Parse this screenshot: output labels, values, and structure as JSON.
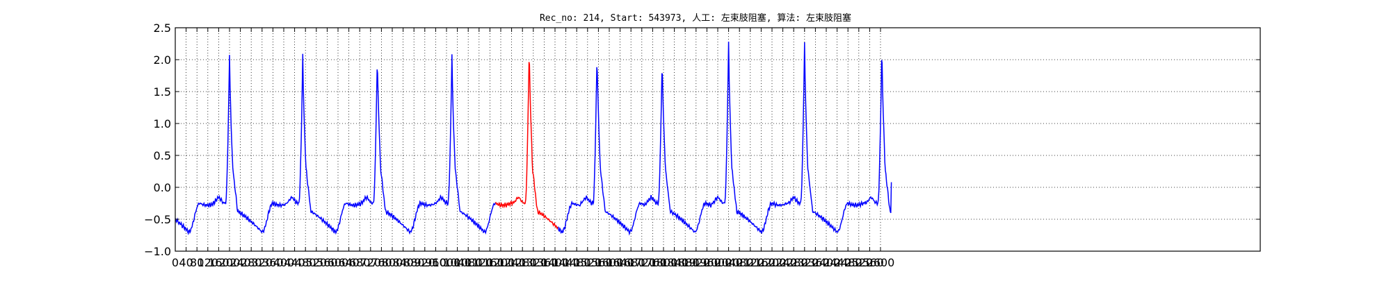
{
  "chart_data": {
    "type": "line",
    "title": "Rec_no: 214, Start: 543973, 人工: 左束肢阻塞, 算法: 左束肢阻塞",
    "xlabel": "",
    "ylabel": "",
    "xlim": [
      0,
      4000
    ],
    "ylim": [
      -1.0,
      2.5
    ],
    "grid": true,
    "y_ticks": [
      -1.0,
      -0.5,
      0.0,
      0.5,
      1.0,
      1.5,
      2.0,
      2.5
    ],
    "y_tick_labels": [
      "−1.0",
      "−0.5",
      "0.0",
      "0.5",
      "1.0",
      "1.5",
      "2.0",
      "2.5"
    ],
    "x_ticks": [
      0,
      40,
      80,
      120,
      160,
      200,
      240,
      280,
      320,
      360,
      400,
      440,
      480,
      520,
      560,
      600,
      640,
      680,
      720,
      760,
      800,
      840,
      880,
      920,
      960,
      1000,
      1040,
      1080,
      1120,
      1160,
      1200,
      1240,
      1280,
      1320,
      1360,
      1400,
      1440,
      1480,
      1520,
      1560,
      1600,
      1640,
      1680,
      1720,
      1760,
      1800,
      1840,
      1880,
      1920,
      1960,
      2000,
      2040,
      2080,
      2120,
      2160,
      2200,
      2240,
      2280,
      2320,
      2360,
      2400,
      2440,
      2480,
      2520,
      2560,
      2600
    ],
    "x_tick_labels": [
      "0",
      "40",
      "80",
      "120",
      "160",
      "200",
      "240",
      "280",
      "320",
      "360",
      "400",
      "440",
      "480",
      "520",
      "560",
      "600",
      "640",
      "680",
      "720",
      "760",
      "800",
      "840",
      "880",
      "920",
      "960",
      "1000",
      "1040",
      "1080",
      "1120",
      "1160",
      "1200",
      "1240",
      "1280",
      "1320",
      "1360",
      "1400",
      "1440",
      "1480",
      "1520",
      "1560",
      "1600",
      "1640",
      "1680",
      "1720",
      "1760",
      "1800",
      "1840",
      "1880",
      "1920",
      "1960",
      "2000",
      "2040",
      "2080",
      "2120",
      "2160",
      "2200",
      "2240",
      "2280",
      "2320",
      "2360",
      "2400",
      "2440",
      "2480",
      "2520",
      "2560",
      "2600"
    ],
    "signal": {
      "x_end": 2640,
      "beats_r_peak_x": [
        200,
        470,
        745,
        1020,
        1305,
        1555,
        1795,
        2040,
        2320,
        2605
      ],
      "beats_r_peak_y": [
        2.08,
        2.06,
        2.12,
        2.07,
        2.26,
        2.17,
        2.06,
        2.28,
        2.26,
        2.26
      ],
      "baseline": -0.25,
      "post_qrs_min": -0.7,
      "end_value": 0.08
    },
    "series": [
      {
        "color": "#0000ff"
      },
      {
        "color": "#ff0000",
        "x_range": [
          1180,
          1410
        ]
      }
    ]
  }
}
